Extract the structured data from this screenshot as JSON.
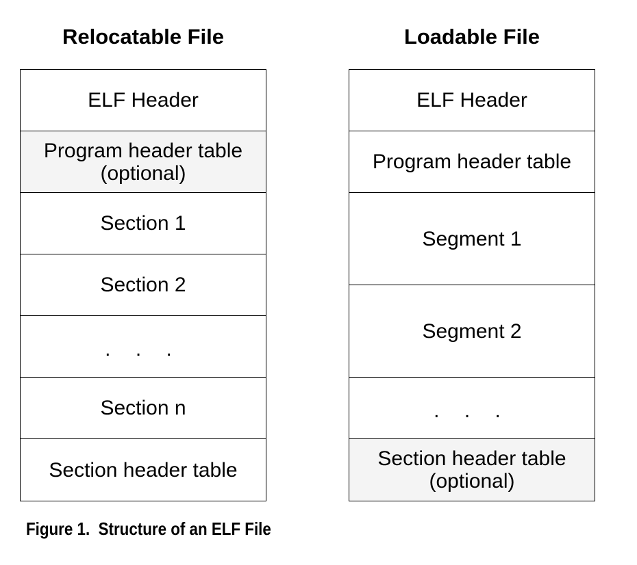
{
  "relocatable": {
    "title": "Relocatable File",
    "blocks": [
      {
        "label": "ELF Header"
      },
      {
        "label": "Program header table\n(optional)"
      },
      {
        "label": "Section 1"
      },
      {
        "label": "Section 2"
      },
      {
        "label": ". . ."
      },
      {
        "label": "Section n"
      },
      {
        "label": "Section header table"
      }
    ]
  },
  "loadable": {
    "title": "Loadable File",
    "blocks": [
      {
        "label": "ELF Header"
      },
      {
        "label": "Program header table"
      },
      {
        "label": "Segment 1"
      },
      {
        "label": "Segment 2"
      },
      {
        "label": ". . ."
      },
      {
        "label": "Section header table\n(optional)"
      }
    ]
  },
  "caption": "Figure 1.  Structure of an ELF File",
  "colors": {
    "border": "#000000",
    "optional_fill": "#f4f4f4",
    "fill": "#ffffff"
  }
}
